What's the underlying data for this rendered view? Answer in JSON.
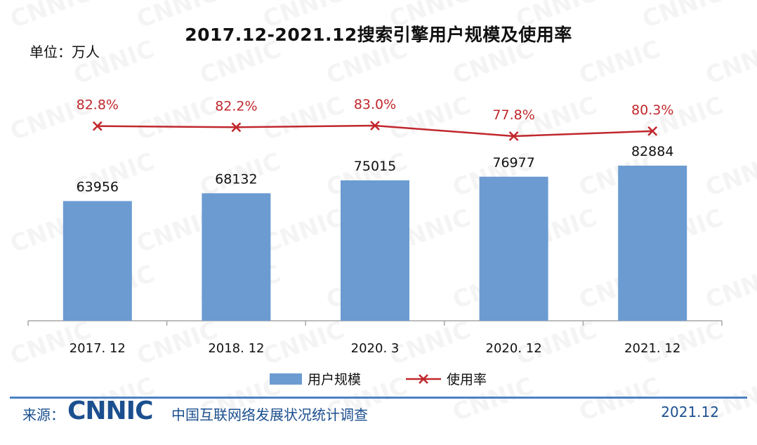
{
  "header": {
    "title": "2017.12-2021.12搜索引擎用户规模及使用率",
    "unit": "单位：万人"
  },
  "watermark": "CNNIC",
  "chart_data": {
    "type": "bar",
    "categories": [
      "2017. 12",
      "2018. 12",
      "2020. 3",
      "2020. 12",
      "2021. 12"
    ],
    "series": [
      {
        "name": "用户规模",
        "type": "bar",
        "values": [
          63956,
          68132,
          75015,
          76977,
          82884
        ],
        "labels": [
          "63956",
          "68132",
          "75015",
          "76977",
          "82884"
        ]
      },
      {
        "name": "使用率",
        "type": "line",
        "values": [
          82.8,
          82.2,
          83.0,
          77.8,
          80.3
        ],
        "labels": [
          "82.8%",
          "82.2%",
          "83.0%",
          "77.8%",
          "80.3%"
        ]
      }
    ],
    "title": "2017.12-2021.12搜索引擎用户规模及使用率",
    "ylabel": "单位：万人",
    "legend": "bottom-center",
    "grid": false,
    "colors": {
      "bar": "#6b9bd1",
      "line": "#c0282d",
      "axis": "#a6a6a6"
    }
  },
  "footer": {
    "source_label": "来源：",
    "logo": "CNNIC",
    "source_name": "中国互联网络发展状况统计调查",
    "date": "2021.12"
  }
}
